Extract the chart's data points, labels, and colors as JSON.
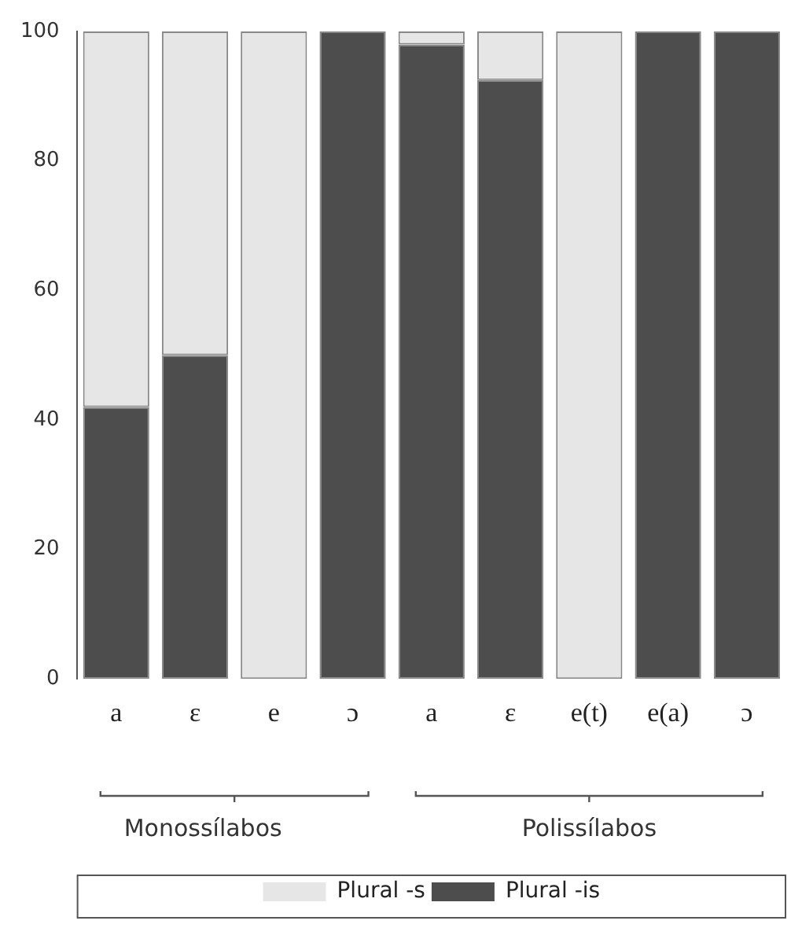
{
  "chart_data": {
    "type": "bar",
    "stacked": true,
    "categories": [
      "a",
      "ɛ",
      "e",
      "ɔ",
      "a",
      "ɛ",
      "e(t)",
      "e(a)",
      "ɔ"
    ],
    "series": [
      {
        "name": "Plural -is",
        "color": "#4d4d4d",
        "values": [
          42,
          50,
          0,
          100,
          98,
          92.5,
          0,
          100,
          100
        ]
      },
      {
        "name": "Plural -s",
        "color": "#e6e6e6",
        "values": [
          58,
          50,
          100,
          0,
          2,
          7.5,
          100,
          0,
          0
        ]
      }
    ],
    "ylim": [
      0,
      100
    ],
    "yticks": [
      0,
      20,
      40,
      60,
      80,
      100
    ],
    "grid": false,
    "legend": "bottom",
    "annotations": [
      "Monossílabos",
      "Polissílabos"
    ]
  }
}
